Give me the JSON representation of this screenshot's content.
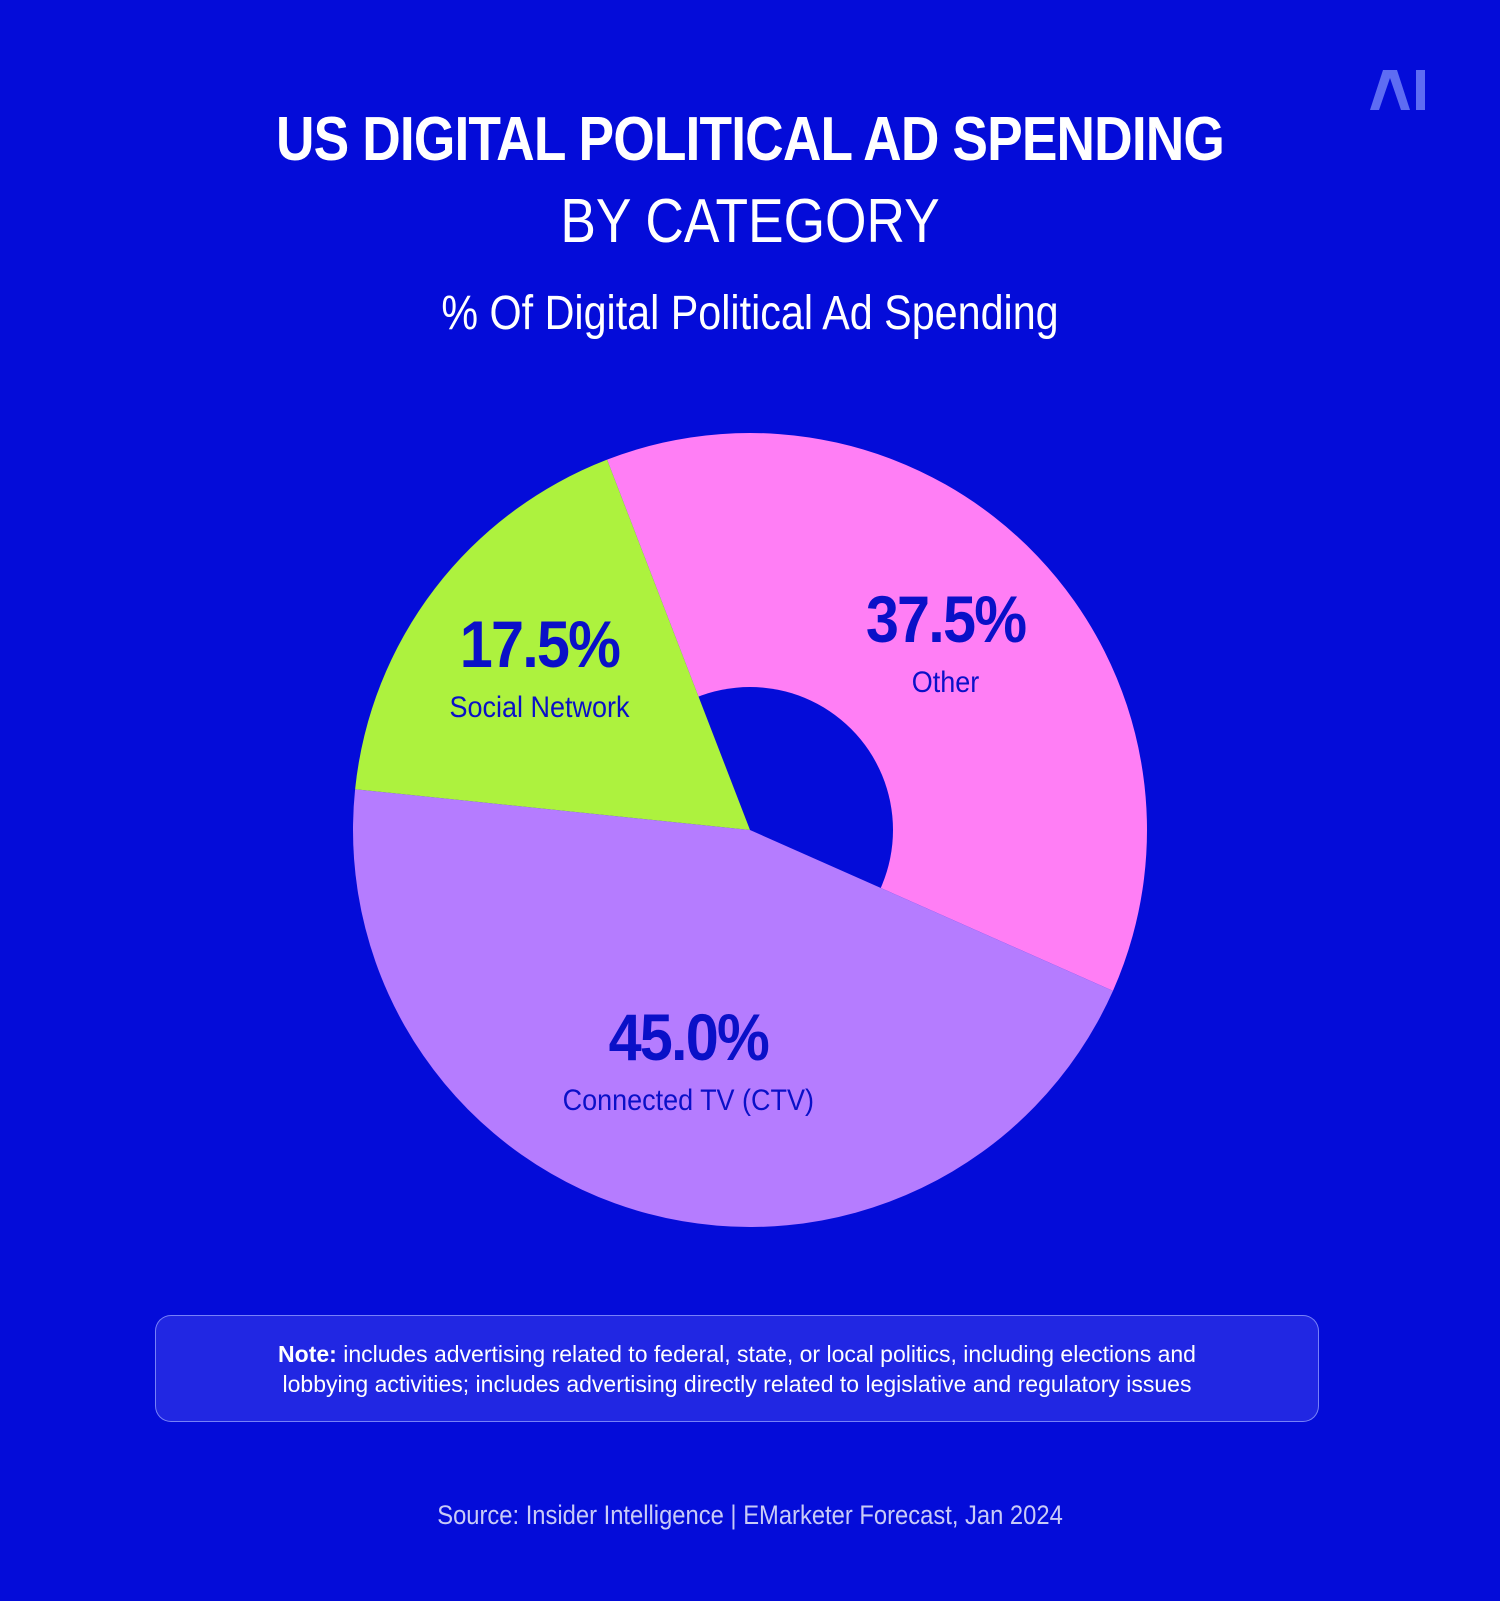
{
  "logo_text": "AI",
  "title_line1": "US DIGITAL POLITICAL AD SPENDING",
  "title_line2": "BY CATEGORY",
  "subtitle": "% Of Digital Political Ad Spending",
  "colors": {
    "background": "#040cd9",
    "other": "#ff7ef5",
    "ctv": "#b57cff",
    "social": "#adf23e",
    "label": "#0a10c8"
  },
  "chart_data": {
    "type": "pie",
    "title": "US DIGITAL POLITICAL AD SPENDING BY CATEGORY",
    "subtitle": "% Of Digital Political Ad Spending",
    "unit": "%",
    "categories": [
      "Other",
      "Connected TV (CTV)",
      "Social Network"
    ],
    "values": [
      37.5,
      45.0,
      17.5
    ],
    "labels": [
      "37.5%",
      "45.0%",
      "17.5%"
    ],
    "legend": "none"
  },
  "note": {
    "label": "Note:",
    "text": " includes advertising related to federal, state, or local politics, including elections and lobbying activities; includes advertising directly related to legislative and regulatory issues"
  },
  "source": "Source: Insider Intelligence | EMarketer Forecast, Jan 2024"
}
